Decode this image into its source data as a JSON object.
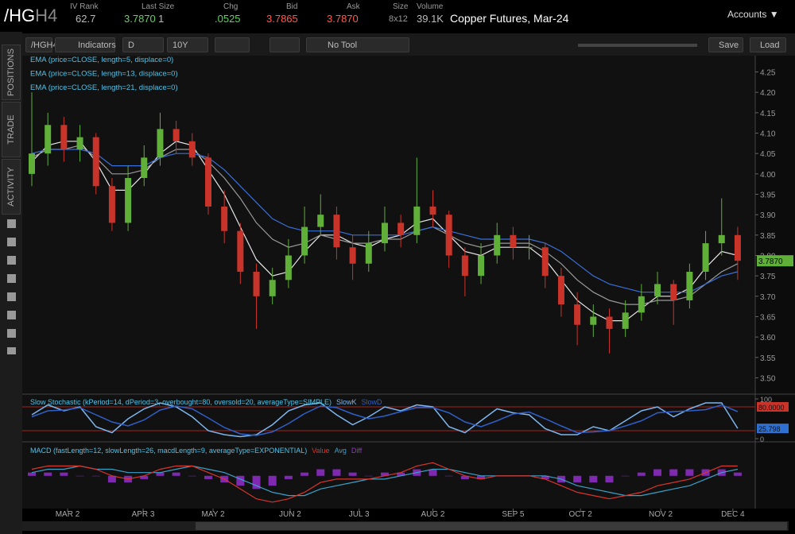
{
  "header": {
    "symbol_root": "/HG",
    "symbol_suffix": "H4",
    "fields": [
      {
        "label": "IV Rank",
        "value": "62.7"
      },
      {
        "label": "Last Size",
        "value": "3.7870",
        "extra": "1"
      },
      {
        "label": "Chg",
        "value": ".0525"
      },
      {
        "label": "Bid",
        "value": "3.7865"
      },
      {
        "label": "Ask",
        "value": "3.7870"
      },
      {
        "label": "Size",
        "value": "8x12"
      },
      {
        "label": "Volume",
        "value": "39.1K"
      }
    ],
    "description": "Copper Futures, Mar-24",
    "accounts": "Accounts"
  },
  "toolbar": {
    "symbol": "/HGH4",
    "indicators": "Indicators",
    "aggregation": "D",
    "period": "10Y",
    "tool": "No Tool",
    "save": "Save",
    "load": "Load"
  },
  "sidebar_tabs": [
    "POSITIONS",
    "TRADE",
    "ACTIVITY"
  ],
  "chart_data": [
    {
      "type": "candlestick",
      "up_color": "#5faf38",
      "down_color": "#c9342a",
      "open": [
        4.0,
        4.05,
        4.12,
        4.06,
        4.09,
        3.97,
        3.88,
        3.99,
        4.04,
        4.11,
        4.08,
        4.04,
        3.92,
        3.86,
        3.76,
        3.7,
        3.74,
        3.8,
        3.87,
        3.9,
        3.82,
        3.78,
        3.83,
        3.88,
        3.85,
        3.92,
        3.9,
        3.8,
        3.75,
        3.8,
        3.85,
        3.82,
        3.82,
        3.75,
        3.68,
        3.63,
        3.65,
        3.62,
        3.66,
        3.7,
        3.73,
        3.69,
        3.76,
        3.83,
        3.85
      ],
      "high": [
        4.2,
        4.15,
        4.14,
        4.12,
        4.1,
        3.99,
        4.02,
        4.07,
        4.15,
        4.13,
        4.1,
        4.05,
        3.96,
        3.88,
        3.78,
        3.77,
        3.84,
        3.92,
        3.95,
        3.92,
        3.85,
        3.86,
        3.92,
        3.9,
        4.04,
        3.96,
        3.91,
        3.82,
        3.83,
        3.88,
        3.87,
        3.85,
        3.83,
        3.77,
        3.71,
        3.68,
        3.67,
        3.69,
        3.73,
        3.76,
        3.74,
        3.78,
        3.86,
        3.94,
        3.87
      ],
      "low": [
        3.97,
        4.02,
        4.03,
        4.03,
        3.95,
        3.86,
        3.86,
        3.97,
        4.02,
        4.05,
        4.02,
        3.9,
        3.83,
        3.73,
        3.62,
        3.68,
        3.72,
        3.78,
        3.85,
        3.79,
        3.74,
        3.76,
        3.81,
        3.82,
        3.83,
        3.87,
        3.77,
        3.7,
        3.73,
        3.78,
        3.79,
        3.79,
        3.72,
        3.65,
        3.58,
        3.6,
        3.56,
        3.6,
        3.64,
        3.68,
        3.63,
        3.67,
        3.74,
        3.8,
        3.74
      ],
      "close": [
        4.05,
        4.12,
        4.06,
        4.09,
        3.97,
        3.88,
        3.99,
        4.04,
        4.11,
        4.08,
        4.04,
        3.92,
        3.86,
        3.76,
        3.7,
        3.74,
        3.8,
        3.87,
        3.9,
        3.82,
        3.78,
        3.83,
        3.88,
        3.85,
        3.92,
        3.9,
        3.8,
        3.75,
        3.8,
        3.85,
        3.82,
        3.82,
        3.75,
        3.68,
        3.63,
        3.65,
        3.62,
        3.66,
        3.7,
        3.73,
        3.69,
        3.76,
        3.83,
        3.85,
        3.787
      ],
      "series": [
        {
          "name": "EMA (price=CLOSE, length=5, displace=0)",
          "color": "#e6e6e6",
          "values": [
            4.03,
            4.07,
            4.08,
            4.08,
            4.03,
            3.96,
            3.96,
            4.0,
            4.05,
            4.08,
            4.07,
            4.01,
            3.95,
            3.87,
            3.79,
            3.75,
            3.76,
            3.81,
            3.85,
            3.85,
            3.83,
            3.82,
            3.84,
            3.85,
            3.88,
            3.89,
            3.85,
            3.81,
            3.8,
            3.82,
            3.82,
            3.82,
            3.79,
            3.74,
            3.69,
            3.66,
            3.64,
            3.64,
            3.67,
            3.7,
            3.7,
            3.72,
            3.77,
            3.81,
            3.8
          ]
        },
        {
          "name": "EMA (price=CLOSE, length=13, displace=0)",
          "color": "#9a9a9a",
          "values": [
            4.04,
            4.06,
            4.06,
            4.07,
            4.04,
            4.0,
            4.0,
            4.01,
            4.04,
            4.06,
            4.06,
            4.03,
            3.99,
            3.94,
            3.88,
            3.84,
            3.82,
            3.83,
            3.85,
            3.84,
            3.83,
            3.83,
            3.84,
            3.84,
            3.86,
            3.87,
            3.85,
            3.83,
            3.82,
            3.83,
            3.83,
            3.83,
            3.81,
            3.78,
            3.74,
            3.71,
            3.69,
            3.68,
            3.68,
            3.69,
            3.69,
            3.7,
            3.73,
            3.76,
            3.78
          ]
        },
        {
          "name": "EMA (price=CLOSE, length=21, displace=0)",
          "color": "#3a6fd8",
          "values": [
            4.05,
            4.06,
            4.06,
            4.06,
            4.05,
            4.02,
            4.02,
            4.02,
            4.04,
            4.05,
            4.05,
            4.04,
            4.01,
            3.97,
            3.93,
            3.89,
            3.87,
            3.86,
            3.86,
            3.86,
            3.85,
            3.85,
            3.85,
            3.85,
            3.86,
            3.87,
            3.86,
            3.85,
            3.84,
            3.84,
            3.84,
            3.84,
            3.83,
            3.81,
            3.78,
            3.75,
            3.73,
            3.72,
            3.71,
            3.71,
            3.71,
            3.71,
            3.73,
            3.75,
            3.76
          ]
        }
      ],
      "ylim": [
        3.46,
        4.29
      ],
      "yticks": [
        {
          "value": 3.5,
          "label": "3.50"
        },
        3.55,
        {
          "value": 3.6,
          "label": "3.60"
        },
        3.65,
        {
          "value": 3.7,
          "label": "3.70"
        },
        3.75,
        {
          "value": 3.8,
          "label": "3.80"
        },
        3.85,
        {
          "value": 3.9,
          "label": "3.90"
        },
        3.95,
        {
          "value": 4,
          "label": "4.00"
        },
        4.05,
        {
          "value": 4.1,
          "label": "4.10"
        },
        4.15,
        {
          "value": 4.2,
          "label": "4.20"
        },
        4.25
      ],
      "xticks": [
        {
          "value": 2.23,
          "label": "MAR 2"
        },
        {
          "value": 6.94,
          "label": "APR 3"
        },
        {
          "value": 11.3,
          "label": "MAY 2"
        },
        {
          "value": 16.1,
          "label": "JUN 2"
        },
        {
          "value": 20.4,
          "label": "JUL 3"
        },
        {
          "value": 25.0,
          "label": "AUG 2"
        },
        {
          "value": 30.0,
          "label": "SEP 5"
        },
        {
          "value": 34.2,
          "label": "OCT 2"
        },
        {
          "value": 39.2,
          "label": "NOV 2"
        },
        {
          "value": 43.7,
          "label": "DEC 4"
        }
      ],
      "last_price": {
        "value": 3.787,
        "label": "3.7870"
      }
    },
    {
      "type": "line",
      "title": "Slow Stochastic (kPeriod=14, dPeriod=3, overbought=80, oversold=20, averageType=SIMPLE)",
      "series": [
        {
          "name": "SlowK",
          "color": "#7db6ee",
          "values": [
            60,
            85,
            70,
            80,
            30,
            15,
            50,
            75,
            90,
            80,
            55,
            20,
            10,
            5,
            10,
            35,
            70,
            85,
            90,
            60,
            35,
            55,
            80,
            70,
            85,
            80,
            30,
            15,
            45,
            75,
            65,
            60,
            25,
            10,
            10,
            30,
            20,
            45,
            70,
            80,
            55,
            75,
            90,
            90,
            25.798
          ]
        },
        {
          "name": "SlowD",
          "color": "#2f5fc8",
          "values": [
            55,
            70,
            72,
            78,
            60,
            42,
            32,
            47,
            72,
            82,
            75,
            52,
            28,
            12,
            8,
            17,
            38,
            63,
            82,
            78,
            62,
            50,
            57,
            68,
            78,
            78,
            65,
            42,
            30,
            45,
            62,
            67,
            50,
            32,
            15,
            17,
            20,
            32,
            45,
            65,
            68,
            70,
            73,
            85,
            68
          ]
        }
      ],
      "levels": [
        80,
        20
      ],
      "level_color": "#a8241c",
      "ylim": [
        0,
        100
      ],
      "yticks": [
        0,
        100
      ],
      "tags": [
        {
          "value": 80,
          "label": "80.0000",
          "color": "#c9342a"
        },
        {
          "value": 25.798,
          "label": "25.798",
          "color": "#2f6fd0"
        }
      ]
    },
    {
      "type": "macd",
      "title": "MACD (fastLength=12, slowLength=26, macdLength=9, averageType=EXPONENTIAL)",
      "series": [
        {
          "name": "Value",
          "color": "#d9342b",
          "values": [
            0.02,
            0.03,
            0.03,
            0.03,
            0.02,
            0.0,
            -0.01,
            0.0,
            0.02,
            0.03,
            0.03,
            0.01,
            -0.01,
            -0.04,
            -0.07,
            -0.08,
            -0.07,
            -0.05,
            -0.02,
            -0.01,
            -0.01,
            -0.01,
            0.0,
            0.01,
            0.03,
            0.04,
            0.02,
            0.0,
            -0.01,
            0.0,
            0.0,
            0.0,
            -0.01,
            -0.03,
            -0.05,
            -0.06,
            -0.07,
            -0.06,
            -0.05,
            -0.03,
            -0.02,
            -0.01,
            0.01,
            0.03,
            0.03
          ]
        },
        {
          "name": "Avg",
          "color": "#3aa0c8",
          "values": [
            0.01,
            0.02,
            0.02,
            0.03,
            0.02,
            0.02,
            0.01,
            0.01,
            0.01,
            0.02,
            0.03,
            0.02,
            0.01,
            -0.01,
            -0.03,
            -0.05,
            -0.06,
            -0.06,
            -0.04,
            -0.03,
            -0.02,
            -0.01,
            -0.01,
            0.0,
            0.01,
            0.02,
            0.02,
            0.01,
            0.0,
            0.0,
            0.0,
            0.0,
            0.0,
            -0.01,
            -0.03,
            -0.04,
            -0.05,
            -0.06,
            -0.06,
            -0.05,
            -0.04,
            -0.03,
            -0.01,
            0.01,
            0.02
          ]
        },
        {
          "name": "Diff",
          "color": "#9b30d9",
          "values": [
            0.01,
            0.01,
            0.01,
            0,
            0,
            -0.02,
            -0.02,
            -0.01,
            0.01,
            0.01,
            0,
            -0.01,
            -0.02,
            -0.03,
            -0.04,
            -0.03,
            -0.01,
            0.01,
            0.02,
            0.02,
            0.01,
            0,
            0.01,
            0.01,
            0.02,
            0.02,
            0,
            -0.01,
            -0.01,
            0,
            0,
            0,
            -0.01,
            -0.02,
            -0.02,
            -0.02,
            -0.02,
            0,
            0.01,
            0.02,
            0.02,
            0.02,
            0.02,
            0.02,
            0.01
          ]
        }
      ],
      "ylim": [
        -0.09,
        0.06
      ]
    }
  ]
}
